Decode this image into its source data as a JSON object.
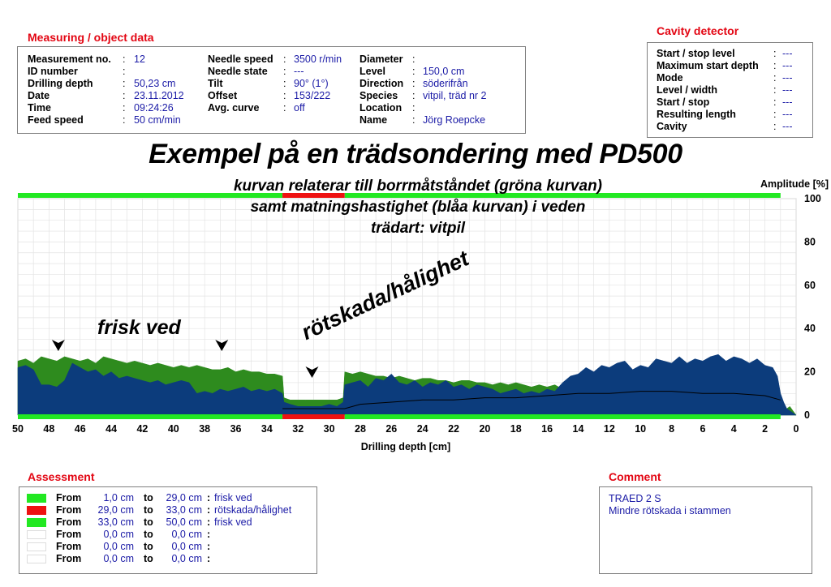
{
  "measuring": {
    "title": "Measuring / object data",
    "col1": [
      {
        "label": "Measurement no.",
        "value": "12"
      },
      {
        "label": "ID number",
        "value": ""
      },
      {
        "label": "Drilling depth",
        "value": "50,23 cm"
      },
      {
        "label": "Date",
        "value": "23.11.2012"
      },
      {
        "label": "Time",
        "value": "09:24:26"
      },
      {
        "label": "Feed speed",
        "value": "50 cm/min"
      }
    ],
    "col2": [
      {
        "label": "Needle speed",
        "value": "3500 r/min"
      },
      {
        "label": "Needle state",
        "value": "---"
      },
      {
        "label": "Tilt",
        "value": "90° (1°)"
      },
      {
        "label": "Offset",
        "value": "153/222"
      },
      {
        "label": "Avg. curve",
        "value": "off"
      }
    ],
    "col3": [
      {
        "label": "Diameter",
        "value": ""
      },
      {
        "label": "Level",
        "value": "150,0 cm"
      },
      {
        "label": "Direction",
        "value": "söderifrån"
      },
      {
        "label": "Species",
        "value": "vitpil, träd nr 2"
      },
      {
        "label": "Location",
        "value": ""
      },
      {
        "label": "Name",
        "value": "Jörg Roepcke"
      }
    ]
  },
  "cavity": {
    "title": "Cavity detector",
    "rows": [
      {
        "label": "Start / stop level",
        "value": "---"
      },
      {
        "label": "Maximum start depth",
        "value": "---"
      },
      {
        "label": "Mode",
        "value": "---"
      },
      {
        "label": "Level / width",
        "value": "---"
      },
      {
        "label": "Start / stop",
        "value": "---"
      },
      {
        "label": "Resulting length",
        "value": "---"
      },
      {
        "label": "Cavity",
        "value": "---"
      }
    ]
  },
  "headline": "Exempel på en trädsondering med PD500",
  "subtitle": [
    "kurvan relaterar till borrmåtståndet (gröna kurvan)",
    "samt matningshastighet (blåa kurvan) i veden",
    "trädart: vitpil"
  ],
  "annotations": {
    "sound": "frisk ved",
    "decay": "rötskada/hålighet"
  },
  "chart_data": {
    "type": "area",
    "xlabel": "Drilling depth [cm]",
    "ylabel": "Amplitude [%]",
    "xlim": [
      50,
      0
    ],
    "ylim": [
      0,
      100
    ],
    "xticks": [
      50,
      48,
      46,
      44,
      42,
      40,
      38,
      36,
      34,
      32,
      30,
      28,
      26,
      24,
      22,
      20,
      18,
      16,
      14,
      12,
      10,
      8,
      6,
      4,
      2,
      0
    ],
    "yticks": [
      0,
      20,
      40,
      60,
      80,
      100
    ],
    "grid": true,
    "colors": {
      "green": "#2e8b1e",
      "blue": "#0c3c7c",
      "sound": "#22e822",
      "decay": "#ee1111"
    },
    "series": [
      {
        "name": "",
        "color": "#2e8b1e",
        "x": [
          50,
          49.5,
          49,
          48.5,
          48,
          47.5,
          47,
          46.5,
          46,
          45.5,
          45,
          44.5,
          44,
          43.5,
          43,
          42.5,
          42,
          41.5,
          41,
          40.5,
          40,
          39.5,
          39,
          38.5,
          38,
          37.5,
          37,
          36.5,
          36,
          35.5,
          35,
          34.5,
          34,
          33.5,
          33,
          32.9,
          32.5,
          32,
          31.5,
          31,
          30.5,
          30,
          29.5,
          29.1,
          29,
          28.5,
          28,
          27.5,
          27,
          26.5,
          26,
          25.5,
          25,
          24.5,
          24,
          23.5,
          23,
          22.5,
          22,
          21.5,
          21,
          20.5,
          20,
          19.5,
          19,
          18.5,
          18,
          17.5,
          17,
          16.5,
          16,
          15.5,
          15,
          14.5,
          14,
          13.5,
          13,
          12.5,
          12,
          11.5,
          11,
          10.5,
          10,
          9.5,
          9,
          8.5,
          8,
          7.5,
          7,
          6.5,
          6,
          5.5,
          5,
          4.5,
          4,
          3.5,
          3,
          2.5,
          2,
          1.5,
          1.2,
          1,
          0.8,
          0.6,
          0.4,
          0.2,
          0
        ],
        "values": [
          25,
          26,
          24,
          27,
          26,
          25,
          27,
          26,
          25,
          26,
          24,
          27,
          26,
          25,
          24,
          25,
          24,
          23,
          24,
          23,
          22,
          23,
          22,
          23,
          22,
          21,
          21,
          22,
          20,
          21,
          20,
          20,
          19,
          19,
          18,
          8,
          7,
          7,
          7,
          7,
          7,
          7,
          7,
          8,
          20,
          19,
          20,
          19,
          18,
          18,
          17,
          18,
          17,
          16,
          17,
          17,
          16,
          16,
          15,
          16,
          16,
          15,
          15,
          14,
          15,
          14,
          15,
          14,
          13,
          14,
          13,
          14,
          12,
          11,
          12,
          11,
          12,
          11,
          12,
          11,
          11,
          10,
          10,
          10,
          10,
          9,
          10,
          9,
          10,
          9,
          9,
          9,
          9,
          8,
          9,
          8,
          8,
          7,
          7,
          6,
          4,
          3,
          2,
          3,
          4,
          2,
          0
        ]
      },
      {
        "name": "",
        "color": "#0c3c7c",
        "x": [
          50,
          49.5,
          49,
          48.5,
          48,
          47.5,
          47,
          46.5,
          46,
          45.5,
          45,
          44.5,
          44,
          43.5,
          43,
          42.5,
          42,
          41.5,
          41,
          40.5,
          40,
          39.5,
          39,
          38.5,
          38,
          37.5,
          37,
          36.5,
          36,
          35.5,
          35,
          34.5,
          34,
          33.5,
          33,
          32.9,
          32.5,
          32,
          31.5,
          31,
          30.5,
          30,
          29.5,
          29.1,
          29,
          28.5,
          28,
          27.5,
          27,
          26.5,
          26,
          25.5,
          25,
          24.5,
          24,
          23.5,
          23,
          22.5,
          22,
          21.5,
          21,
          20.5,
          20,
          19.5,
          19,
          18.5,
          18,
          17.5,
          17,
          16.5,
          16,
          15.5,
          15,
          14.5,
          14,
          13.5,
          13,
          12.5,
          12,
          11.5,
          11,
          10.5,
          10,
          9.5,
          9,
          8.5,
          8,
          7.5,
          7,
          6.5,
          6,
          5.5,
          5,
          4.5,
          4,
          3.5,
          3,
          2.5,
          2,
          1.5,
          1.2,
          1,
          0.8,
          0.6,
          0.4,
          0.2,
          0
        ],
        "values": [
          22,
          23,
          21,
          14,
          14,
          13,
          16,
          24,
          22,
          20,
          21,
          18,
          20,
          17,
          18,
          17,
          16,
          15,
          16,
          14,
          15,
          16,
          15,
          10,
          11,
          10,
          12,
          11,
          12,
          13,
          11,
          12,
          11,
          12,
          10,
          6,
          5,
          4,
          4,
          4,
          4,
          5,
          4,
          6,
          14,
          15,
          16,
          13,
          17,
          16,
          19,
          15,
          14,
          16,
          13,
          15,
          14,
          16,
          13,
          14,
          12,
          14,
          13,
          12,
          10,
          11,
          12,
          10,
          11,
          10,
          12,
          11,
          15,
          18,
          19,
          22,
          20,
          23,
          22,
          24,
          25,
          21,
          23,
          22,
          26,
          25,
          24,
          27,
          24,
          26,
          25,
          27,
          28,
          25,
          27,
          26,
          24,
          26,
          23,
          22,
          18,
          10,
          6,
          3,
          2,
          1,
          0
        ]
      },
      {
        "name": "",
        "color": "#000000",
        "x": [
          33,
          32,
          31,
          30,
          29,
          28,
          26,
          24,
          22,
          20,
          18,
          16,
          14,
          12,
          10,
          8,
          6,
          4,
          2,
          1
        ],
        "values": [
          3,
          3,
          3,
          3,
          3,
          5,
          6,
          7,
          7,
          8,
          8,
          9,
          10,
          10,
          11,
          11,
          10,
          10,
          9,
          7
        ]
      }
    ],
    "segments": [
      {
        "from": 50,
        "to": 33,
        "color": "#22e822"
      },
      {
        "from": 33,
        "to": 29,
        "color": "#ee1111"
      },
      {
        "from": 29,
        "to": 1,
        "color": "#22e822"
      }
    ]
  },
  "assessment": {
    "title": "Assessment",
    "rows": [
      {
        "from_label": "From",
        "from": "1,0 cm",
        "to_label": "to",
        "to": "29,0 cm",
        "label": "frisk ved",
        "color": "#22e822"
      },
      {
        "from_label": "From",
        "from": "29,0 cm",
        "to_label": "to",
        "to": "33,0 cm",
        "label": "rötskada/hålighet",
        "color": "#ee1111"
      },
      {
        "from_label": "From",
        "from": "33,0 cm",
        "to_label": "to",
        "to": "50,0 cm",
        "label": "frisk ved",
        "color": "#22e822"
      },
      {
        "from_label": "From",
        "from": "0,0 cm",
        "to_label": "to",
        "to": "0,0 cm",
        "label": "",
        "color": "#ffffff"
      },
      {
        "from_label": "From",
        "from": "0,0 cm",
        "to_label": "to",
        "to": "0,0 cm",
        "label": "",
        "color": "#ffffff"
      },
      {
        "from_label": "From",
        "from": "0,0 cm",
        "to_label": "to",
        "to": "0,0 cm",
        "label": "",
        "color": "#ffffff"
      }
    ]
  },
  "comment": {
    "title": "Comment",
    "lines": [
      "TRAED 2 S",
      "Mindre rötskada i stammen"
    ]
  }
}
